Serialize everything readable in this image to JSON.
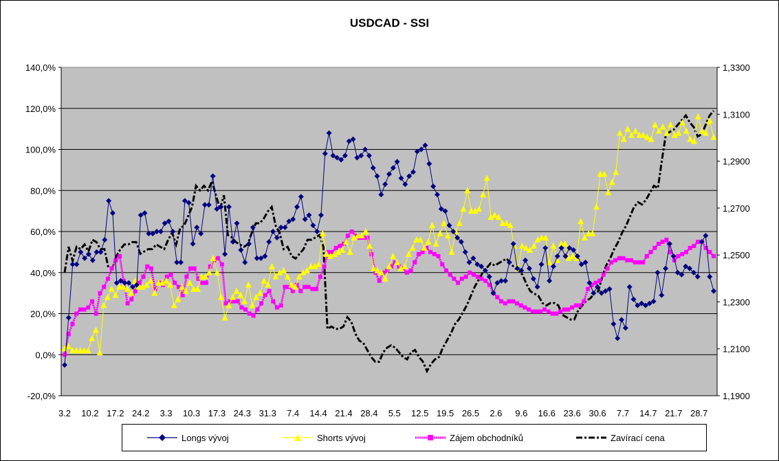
{
  "chart_data": {
    "type": "line",
    "title": "USDCAD - SSI",
    "y_left": {
      "min": -20,
      "max": 140,
      "ticks": [
        "-20,0%",
        "0,0%",
        "20,0%",
        "40,0%",
        "60,0%",
        "80,0%",
        "100,0%",
        "120,0%",
        "140,0%"
      ]
    },
    "y_right": {
      "min": 1.19,
      "max": 1.33,
      "ticks": [
        "1,1900",
        "1,2100",
        "1,2300",
        "1,2500",
        "1,2700",
        "1,2900",
        "1,3100",
        "1,3300"
      ]
    },
    "x_labels": [
      "3.2",
      "10.2",
      "17.2",
      "24.2",
      "3.3",
      "10.3",
      "17.3",
      "24.3",
      "31.3",
      "7.4",
      "14.4",
      "21.4",
      "28.4",
      "5.5",
      "12.5",
      "19.5",
      "26.5",
      "2.6",
      "9.6",
      "16.6",
      "23.6",
      "30.6",
      "7.7",
      "14.7",
      "21.7",
      "28.7"
    ],
    "grid": true,
    "plot_background": "#c0c0c0",
    "legend_position": "bottom",
    "series": [
      {
        "name": "Longs vývoj",
        "axis": "left",
        "color": "#000080",
        "marker": "diamond",
        "values": [
          -5,
          18,
          44,
          44,
          50,
          47,
          49,
          46,
          50,
          50,
          56,
          75,
          69,
          35,
          36,
          35,
          35,
          33,
          34,
          68,
          69,
          59,
          59,
          60,
          60,
          64,
          65,
          60,
          45,
          45,
          75,
          74,
          54,
          62,
          59,
          73,
          73,
          87,
          71,
          72,
          49,
          72,
          55,
          64,
          51,
          45,
          54,
          62,
          47,
          47,
          48,
          55,
          60,
          57,
          62,
          62,
          65,
          66,
          72,
          77,
          66,
          68,
          63,
          60,
          68,
          98,
          108,
          97,
          96,
          95,
          97,
          104,
          105,
          96,
          97,
          100,
          97,
          91,
          87,
          78,
          83,
          88,
          91,
          94,
          86,
          83,
          87,
          89,
          99,
          100,
          102,
          93,
          82,
          78,
          71,
          70,
          63,
          60,
          57,
          55,
          50,
          45,
          47,
          44,
          43,
          41,
          38,
          30,
          35,
          36,
          36,
          45,
          54,
          42,
          41,
          46,
          42,
          37,
          33,
          44,
          52,
          36,
          43,
          48,
          52,
          48,
          52,
          51,
          48,
          44,
          45,
          35,
          30,
          33,
          30,
          31,
          32,
          15,
          8,
          17,
          13,
          33,
          27,
          24,
          25,
          24,
          25,
          26,
          40,
          29,
          42,
          54,
          48,
          40,
          39,
          43,
          42,
          40,
          38,
          55,
          58,
          38,
          31
        ]
      },
      {
        "name": "Shorts vývoj",
        "axis": "left",
        "color": "#ffff00",
        "marker": "triangle",
        "values": [
          3,
          4,
          2,
          2,
          2,
          2,
          2,
          8,
          12,
          1,
          24,
          28,
          32,
          29,
          33,
          33,
          32,
          30,
          36,
          33,
          33,
          34,
          36,
          30,
          35,
          35,
          36,
          34,
          24,
          27,
          33,
          31,
          35,
          32,
          32,
          38,
          38,
          40,
          47,
          40,
          28,
          18,
          24,
          28,
          31,
          29,
          26,
          34,
          24,
          28,
          30,
          36,
          34,
          43,
          38,
          40,
          41,
          38,
          34,
          33,
          38,
          40,
          41,
          43,
          43,
          44,
          59,
          49,
          48,
          49,
          50,
          51,
          55,
          50,
          57,
          58,
          58,
          60,
          53,
          42,
          41,
          40,
          37,
          43,
          48,
          45,
          42,
          43,
          49,
          52,
          56,
          56,
          52,
          55,
          63,
          54,
          59,
          64,
          58,
          50,
          60,
          64,
          71,
          80,
          70,
          70,
          71,
          78,
          86,
          67,
          68,
          67,
          64,
          64,
          63,
          53,
          42,
          53,
          52,
          51,
          53,
          56,
          57,
          57,
          45,
          53,
          46,
          54,
          54,
          47,
          48,
          47,
          65,
          57,
          59,
          59,
          72,
          88,
          88,
          79,
          84,
          89,
          108,
          105,
          110,
          107,
          109,
          107,
          107,
          106,
          105,
          112,
          109,
          111,
          108,
          112,
          107,
          108,
          113,
          109,
          105,
          104,
          116,
          109,
          108,
          114,
          106
        ]
      },
      {
        "name": "Zájem obchodníků",
        "axis": "left",
        "color": "#ff00ff",
        "marker": "square",
        "values": [
          0,
          10,
          15,
          20,
          22,
          22,
          23,
          26,
          20,
          30,
          33,
          37,
          42,
          46,
          48,
          36,
          25,
          27,
          31,
          35,
          38,
          43,
          42,
          32,
          35,
          34,
          38,
          39,
          35,
          33,
          29,
          38,
          42,
          42,
          37,
          35,
          35,
          43,
          46,
          47,
          44,
          25,
          26,
          26,
          26,
          23,
          22,
          20,
          19,
          22,
          25,
          29,
          31,
          26,
          23,
          24,
          33,
          33,
          31,
          34,
          31,
          33,
          33,
          32,
          32,
          38,
          43,
          50,
          50,
          52,
          53,
          54,
          58,
          60,
          58,
          57,
          57,
          57,
          49,
          40,
          36,
          40,
          41,
          43,
          45,
          43,
          42,
          40,
          41,
          45,
          49,
          50,
          52,
          50,
          49,
          48,
          44,
          41,
          39,
          37,
          35,
          37,
          38,
          40,
          39,
          38,
          37,
          36,
          34,
          30,
          28,
          26,
          25,
          26,
          26,
          25,
          24,
          23,
          22,
          21,
          21,
          21,
          22,
          21,
          20,
          20,
          21,
          22,
          22,
          23,
          24,
          24,
          26,
          32,
          34,
          35,
          36,
          39,
          42,
          45,
          46,
          47,
          47,
          46,
          46,
          45,
          45,
          45,
          48,
          50,
          52,
          54,
          55,
          56,
          50,
          46,
          48,
          49,
          50,
          52,
          53,
          55,
          55,
          52,
          50,
          48
        ]
      },
      {
        "name": "Zavírací cena",
        "axis": "right",
        "color": "#000000",
        "marker": "dash",
        "values": [
          1.2425,
          1.2535,
          1.2475,
          1.2535,
          1.2525,
          1.2545,
          1.2515,
          1.2565,
          1.2555,
          1.2525,
          1.2525,
          1.2445,
          1.2445,
          1.2495,
          1.2525,
          1.2545,
          1.2545,
          1.2555,
          1.2555,
          1.2505,
          1.2515,
          1.2525,
          1.2525,
          1.2545,
          1.2535,
          1.2525,
          1.2565,
          1.2595,
          1.2545,
          1.2615,
          1.2625,
          1.2665,
          1.2705,
          1.2795,
          1.2775,
          1.2795,
          1.2775,
          1.2815,
          1.2755,
          1.2695,
          1.2755,
          1.2585,
          1.2575,
          1.2555,
          1.2545,
          1.2535,
          1.2545,
          1.2595,
          1.2635,
          1.2635,
          1.2655,
          1.2685,
          1.2705,
          1.2625,
          1.2595,
          1.2525,
          1.2535,
          1.2495,
          1.2485,
          1.2505,
          1.2525,
          1.2565,
          1.2565,
          1.2575,
          1.2585,
          1.2535,
          1.2185,
          1.2195,
          1.2185,
          1.2185,
          1.2195,
          1.2235,
          1.2215,
          1.2165,
          1.2135,
          1.2125,
          1.2095,
          1.2065,
          1.2045,
          1.2045,
          1.2085,
          1.2105,
          1.2115,
          1.2105,
          1.2085,
          1.2065,
          1.2055,
          1.2085,
          1.2095,
          1.2065,
          1.2045,
          1.2005,
          1.2035,
          1.2055,
          1.2065,
          1.2105,
          1.2135,
          1.2165,
          1.2205,
          1.2225,
          1.2255,
          1.2285,
          1.2325,
          1.2365,
          1.2395,
          1.2425,
          1.2445,
          1.2465,
          1.2455,
          1.2465,
          1.2475,
          1.2485,
          1.2465,
          1.2445,
          1.2435,
          1.2415,
          1.2375,
          1.2345,
          1.2335,
          1.2325,
          1.2295,
          1.2285,
          1.2295,
          1.2295,
          1.2285,
          1.2245,
          1.2235,
          1.2225,
          1.2225,
          1.2265,
          1.2285,
          1.2305,
          1.2315,
          1.2335,
          1.2345,
          1.2405,
          1.2455,
          1.2485,
          1.2525,
          1.2555,
          1.2595,
          1.2625,
          1.2665,
          1.2705,
          1.2725,
          1.2715,
          1.2735,
          1.2765,
          1.2795,
          1.2785,
          1.2905,
          1.3015,
          1.3025,
          1.3035,
          1.3055,
          1.3075,
          1.3095,
          1.3065,
          1.3045,
          1.3005,
          1.3015,
          1.3055,
          1.3095,
          1.3115
        ]
      }
    ]
  }
}
